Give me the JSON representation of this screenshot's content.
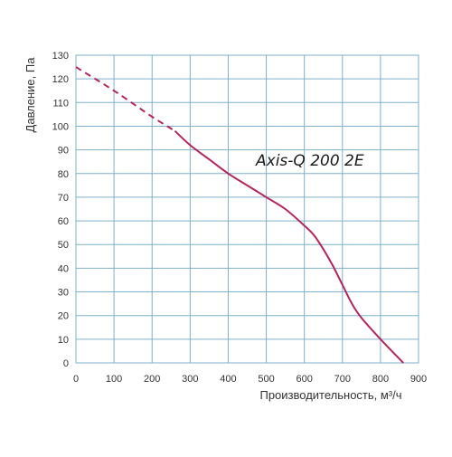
{
  "chart_data": {
    "type": "line",
    "title": "",
    "xlabel": "Производительность, м³/ч",
    "ylabel": "Давление, Па",
    "annotation": "Axis-Q 200 2E",
    "xlim": [
      0,
      900
    ],
    "ylim": [
      0,
      130
    ],
    "x_ticks": [
      "0",
      "100",
      "200",
      "300",
      "400",
      "500",
      "600",
      "700",
      "800",
      "900"
    ],
    "y_ticks": [
      "0",
      "10",
      "20",
      "30",
      "40",
      "50",
      "60",
      "70",
      "80",
      "90",
      "100",
      "110",
      "120",
      "130"
    ],
    "grid": true,
    "series": [
      {
        "color": "#b5245c",
        "dashed_segment": {
          "x": [
            0,
            100,
            200,
            260
          ],
          "y": [
            125,
            115,
            104,
            98
          ]
        },
        "solid_segment": {
          "x": [
            260,
            300,
            350,
            400,
            450,
            500,
            550,
            600,
            625,
            650,
            675,
            700,
            725,
            750,
            800,
            860
          ],
          "y": [
            98,
            92,
            86,
            80,
            75,
            70,
            65,
            58,
            54,
            48,
            41,
            33,
            25,
            19,
            10,
            0
          ]
        }
      }
    ]
  }
}
